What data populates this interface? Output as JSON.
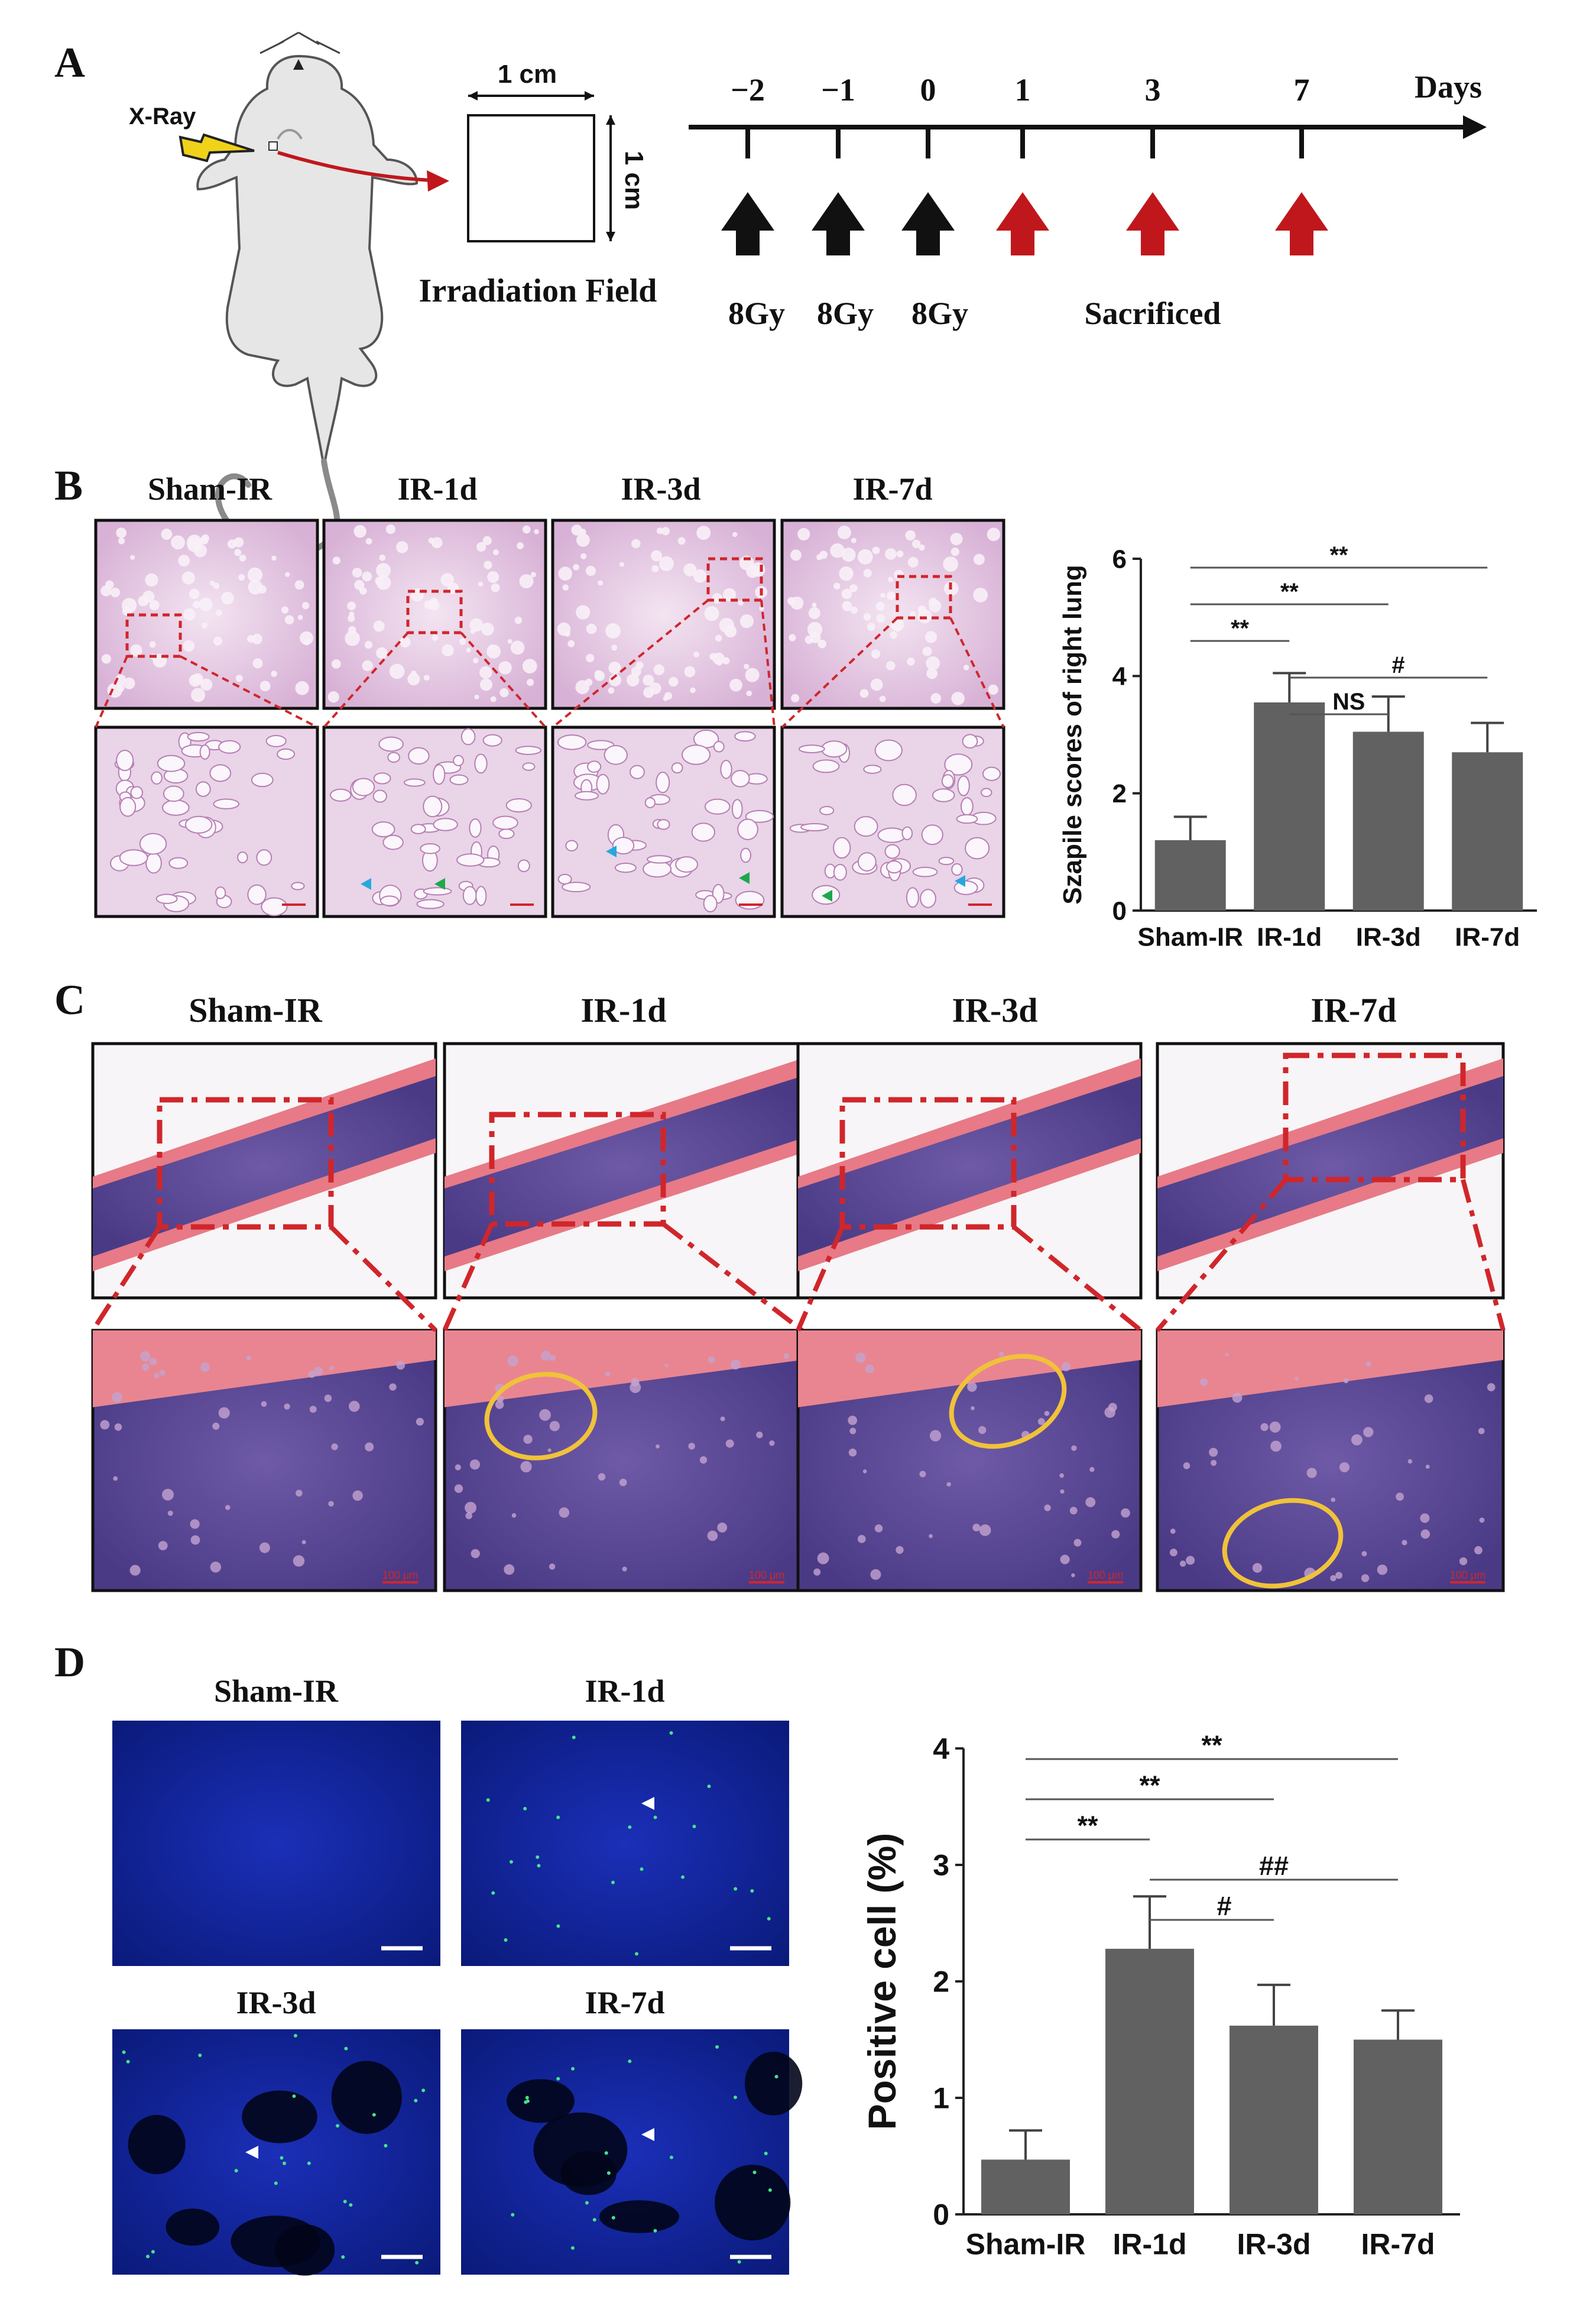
{
  "panels": {
    "A": "A",
    "B": "B",
    "C": "C",
    "D": "D"
  },
  "panel_a": {
    "xray_label": "X-Ray",
    "field_width": "1 cm",
    "field_height": "1 cm",
    "field_caption": "Irradiation Field",
    "timeline_unit": "Days",
    "days": [
      "−2",
      "−1",
      "0",
      "1",
      "3",
      "7"
    ],
    "doses": [
      "8Gy",
      "8Gy",
      "8Gy"
    ],
    "sacrificed": "Sacrificed",
    "colors": {
      "dose_arrow": "#111111",
      "sacrifice_arrow": "#c0171d",
      "mouse_arrow": "#c0171d"
    }
  },
  "panel_b": {
    "group_titles": [
      "Sham-IR",
      "IR-1d",
      "IR-3d",
      "IR-7d"
    ]
  },
  "panel_c": {
    "group_titles": [
      "Sham-IR",
      "IR-1d",
      "IR-3d",
      "IR-7d"
    ],
    "scale_bar": "100 μm"
  },
  "panel_d": {
    "image_titles": [
      "Sham-IR",
      "IR-1d",
      "IR-3d",
      "IR-7d"
    ]
  },
  "chart_data": [
    {
      "type": "bar",
      "panel": "B",
      "categories": [
        "Sham-IR",
        "IR-1d",
        "IR-3d",
        "IR-7d"
      ],
      "values": [
        1.2,
        3.55,
        3.05,
        2.7
      ],
      "errors": [
        0.4,
        0.5,
        0.6,
        0.5
      ],
      "ylabel": "Szapile scores of right lung",
      "ylim": [
        0,
        6
      ],
      "yticks": [
        "0",
        "2",
        "4",
        "6"
      ],
      "significance": [
        {
          "from": 0,
          "to": 3,
          "label": "**"
        },
        {
          "from": 0,
          "to": 2,
          "label": "**"
        },
        {
          "from": 0,
          "to": 1,
          "label": "**"
        },
        {
          "from": 1,
          "to": 3,
          "label": "#"
        },
        {
          "from": 1,
          "to": 2,
          "label": "NS"
        }
      ],
      "bar_color": "#616161"
    },
    {
      "type": "bar",
      "panel": "D",
      "categories": [
        "Sham-IR",
        "IR-1d",
        "IR-3d",
        "IR-7d"
      ],
      "values": [
        0.47,
        2.28,
        1.62,
        1.5
      ],
      "errors": [
        0.25,
        0.45,
        0.35,
        0.25
      ],
      "ylabel": "Positive cell (%)",
      "ylim": [
        0,
        4
      ],
      "yticks": [
        "0",
        "1",
        "2",
        "3",
        "4"
      ],
      "significance": [
        {
          "from": 0,
          "to": 3,
          "label": "**"
        },
        {
          "from": 0,
          "to": 2,
          "label": "**"
        },
        {
          "from": 0,
          "to": 1,
          "label": "**"
        },
        {
          "from": 1,
          "to": 3,
          "label": "##"
        },
        {
          "from": 1,
          "to": 2,
          "label": "#"
        }
      ],
      "bar_color": "#616161"
    }
  ]
}
